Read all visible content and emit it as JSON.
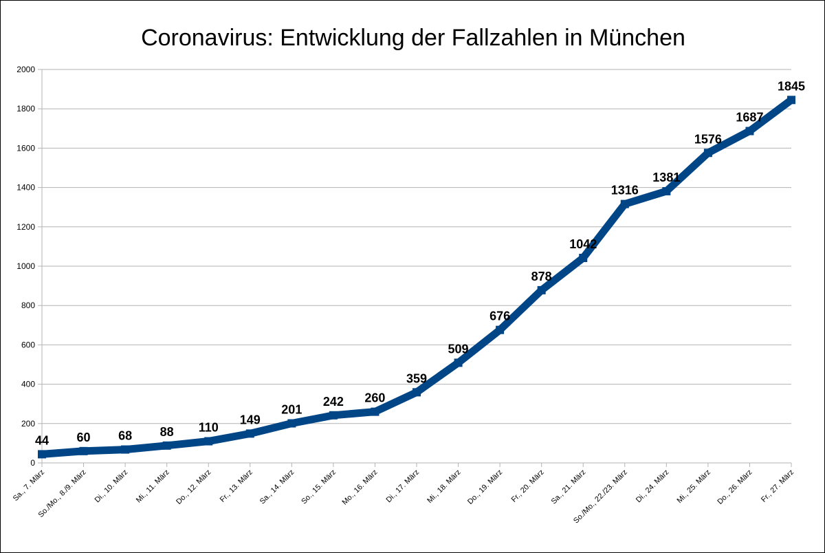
{
  "chart_data": {
    "type": "line",
    "title": "Coronavirus: Entwicklung der Fallzahlen in München",
    "xlabel": "",
    "ylabel": "",
    "categories": [
      "Sa., 7. März",
      "So./Mo., 8./9. März",
      "Di., 10. März",
      "Mi., 11. März",
      "Do., 12. März",
      "Fr., 13. März",
      "Sa., 14. März",
      "So., 15. März",
      "Mo., 16. März",
      "Di., 17. März",
      "Mi., 18. März",
      "Do., 19. März",
      "Fr., 20. März",
      "Sa., 21. März",
      "So./Mo., 22./23. März",
      "Di., 24. März",
      "Mi., 25. März",
      "Do., 26. März",
      "Fr., 27. März"
    ],
    "series": [
      {
        "values": [
          44,
          60,
          68,
          88,
          110,
          149,
          201,
          242,
          260,
          359,
          509,
          676,
          878,
          1042,
          1316,
          1381,
          1576,
          1687,
          1845
        ]
      }
    ],
    "ylim": [
      0,
      2000
    ],
    "yticks": [
      0,
      200,
      400,
      600,
      800,
      1000,
      1200,
      1400,
      1600,
      1800,
      2000
    ],
    "grid": "horizontal",
    "legend": "none",
    "line_color": "#004586",
    "grid_color": "#b3b3b3",
    "data_labels": true
  }
}
